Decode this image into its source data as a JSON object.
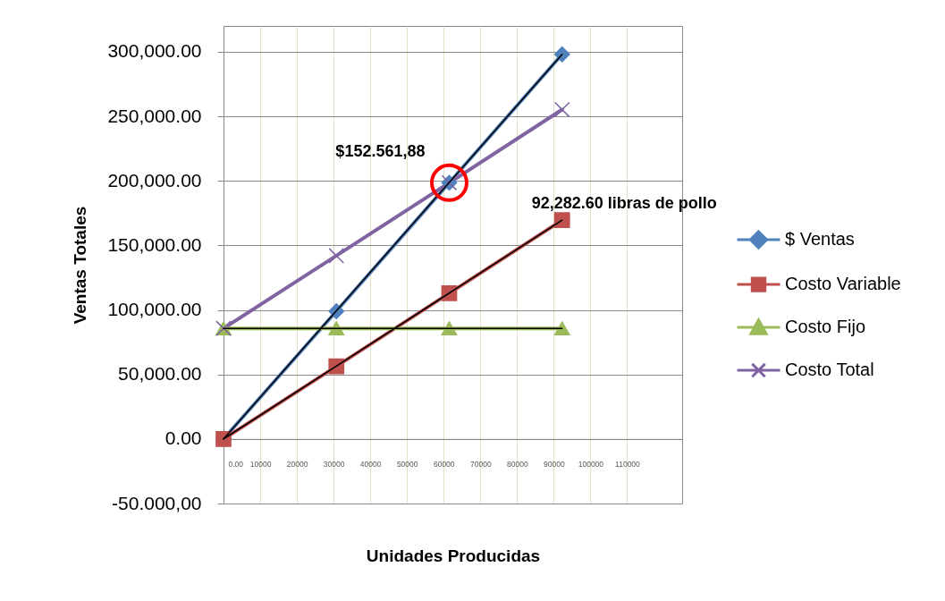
{
  "chart_data": {
    "type": "line",
    "xlabel": "Unidades Producidas",
    "ylabel": "Ventas Totales",
    "x": [
      0,
      30760,
      61520,
      92282.6
    ],
    "xlim": [
      0,
      125000
    ],
    "xticks": [
      {
        "value": 0,
        "label": "0.00"
      },
      10000,
      20000,
      30000,
      40000,
      50000,
      60000,
      70000,
      80000,
      90000,
      100000,
      110000
    ],
    "ylim": [
      -50000,
      320000
    ],
    "yticks": [
      {
        "value": -50000,
        "label": "-50.000,00"
      },
      {
        "value": 0,
        "label": "0.00"
      },
      {
        "value": 50000,
        "label": "50,000.00"
      },
      {
        "value": 100000,
        "label": "100,000.00"
      },
      {
        "value": 150000,
        "label": "150,000.00"
      },
      {
        "value": 200000,
        "label": "200,000.00"
      },
      {
        "value": 250000,
        "label": "250,000.00"
      },
      {
        "value": 300000,
        "label": "300,000.00"
      }
    ],
    "grid": true,
    "legend": "right",
    "series": [
      {
        "name": "$ Ventas",
        "color": "#4f81bd",
        "marker": "diamond",
        "values": [
          0,
          99000,
          198500,
          298000
        ]
      },
      {
        "name": "Costo Variable",
        "color": "#c0504d",
        "marker": "square",
        "values": [
          0,
          56300,
          112900,
          169500
        ]
      },
      {
        "name": "Costo Fijo",
        "color": "#9bbb59",
        "marker": "triangle",
        "values": [
          85700,
          85700,
          85700,
          85700
        ]
      },
      {
        "name": "Costo Total",
        "color": "#8064a2",
        "marker": "cross",
        "values": [
          85700,
          142000,
          198500,
          255200
        ]
      },
      {
        "type": "line",
        "color": "#000000",
        "marker": "none",
        "values": [
          0,
          99300,
          198700,
          298000
        ]
      },
      {
        "type": "line",
        "color": "#000000",
        "marker": "none",
        "values": [
          0,
          56500,
          113000,
          169500
        ]
      },
      {
        "type": "line",
        "color": "#000000",
        "marker": "none",
        "values": [
          85700,
          85700,
          85700,
          85700
        ]
      }
    ],
    "annotations": [
      {
        "text": "$152.561,88",
        "x": 61520,
        "y": 198500
      },
      {
        "text": "92,282.60 libras de pollo",
        "x": 92282.6,
        "y": 169500
      }
    ]
  }
}
